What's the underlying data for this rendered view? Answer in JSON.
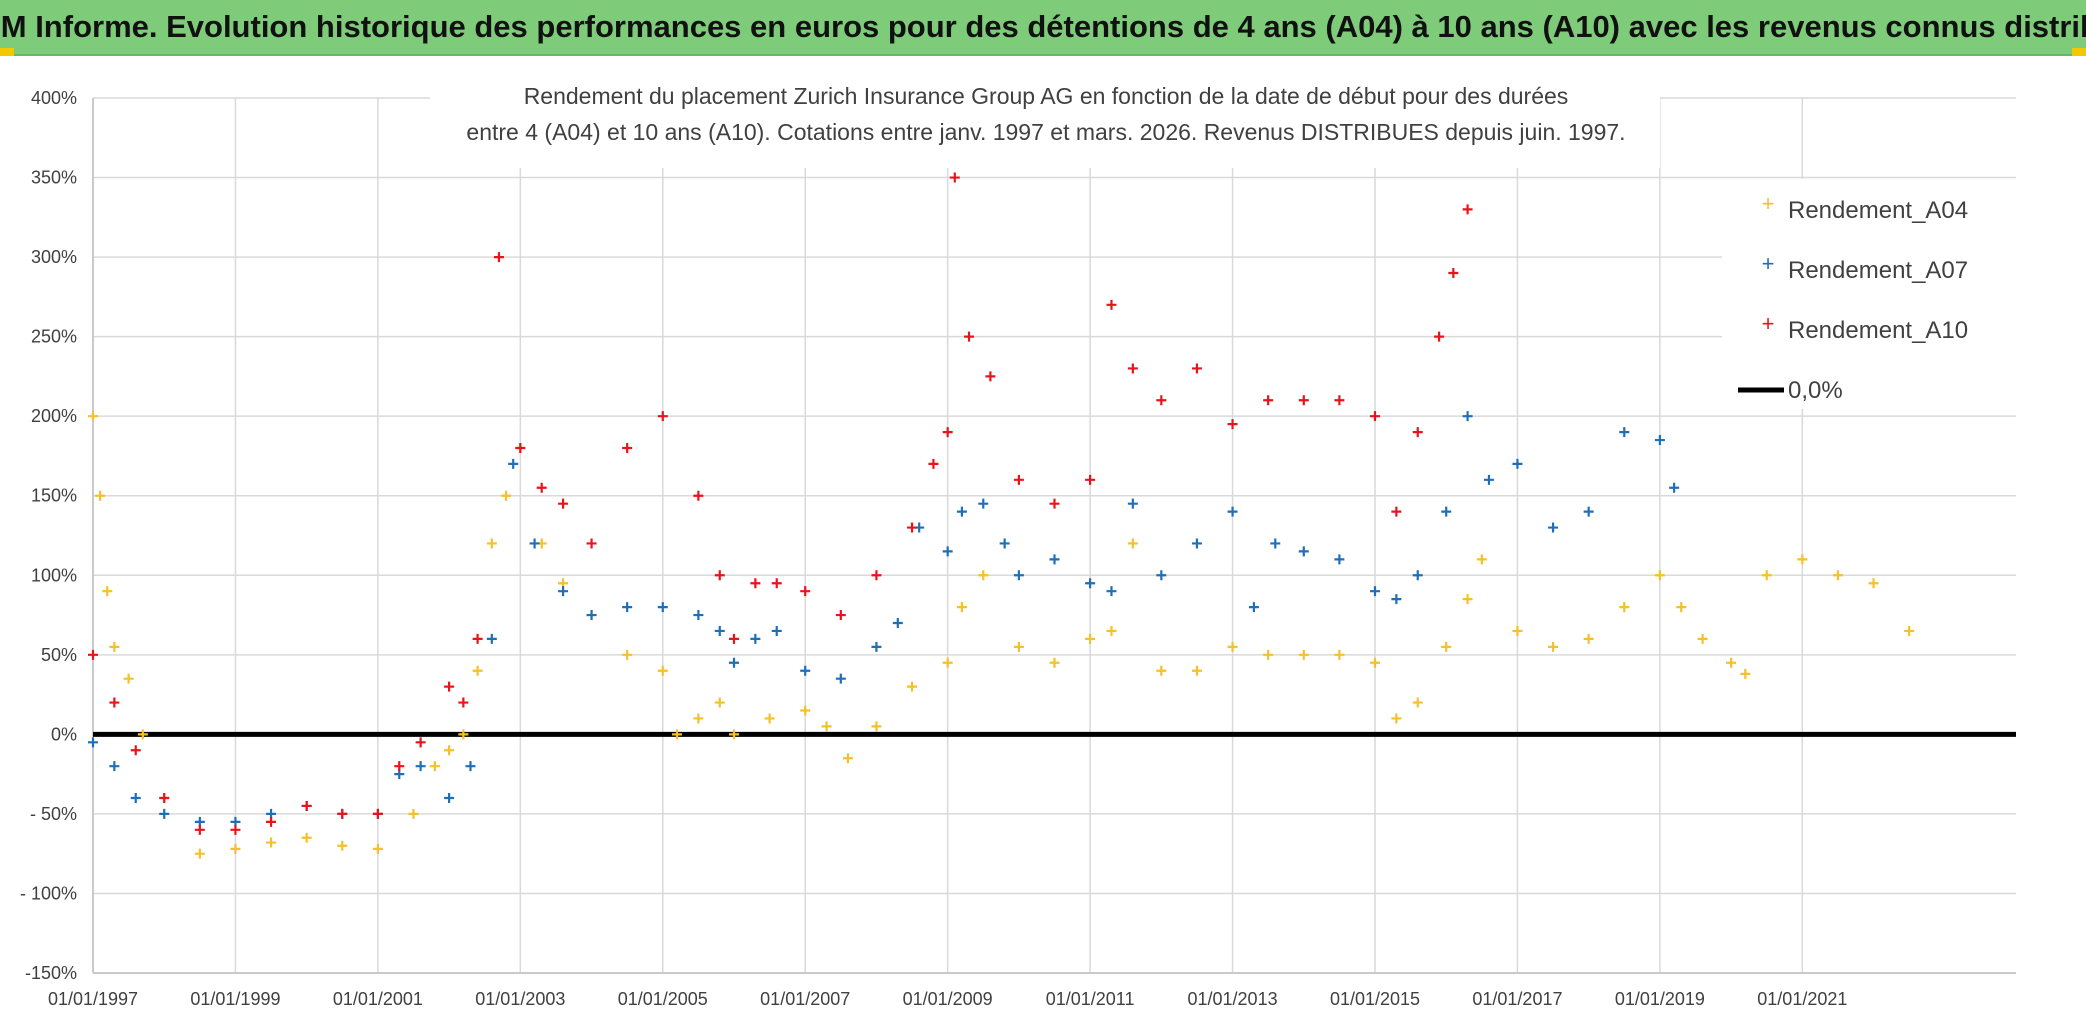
{
  "header": {
    "banner_title": "ADAM Informe. Evolution historique des performances en euros pour des détentions de 4 ans (A04) à 10 ans (A10) avec les revenus connus distribués"
  },
  "colors": {
    "banner": "#7ecb7a",
    "a04": "#f5c02a",
    "a07": "#1f6fb8",
    "a10": "#e8141c",
    "zero": "#000000",
    "grid": "#d9d9d9"
  },
  "chart_data": {
    "type": "scatter",
    "title_lines": [
      "Rendement du placement Zurich Insurance Group AG en fonction de la date de début pour des durées",
      "entre 4 (A04) et 10 ans (A10). Cotations entre janv. 1997 et mars. 2026. Revenus DISTRIBUES depuis juin. 1997."
    ],
    "xlim": [
      1997.0,
      2024.0
    ],
    "ylim": [
      -150,
      400
    ],
    "yticks": [
      400,
      350,
      300,
      250,
      200,
      150,
      100,
      50,
      0,
      -50,
      -100,
      -150
    ],
    "ytick_labels": [
      "400%",
      "350%",
      "300%",
      "250%",
      "200%",
      "150%",
      "100%",
      "50%",
      "0%",
      "- 50%",
      "- 100%",
      "-150%"
    ],
    "xticks": [
      1997,
      1999,
      2001,
      2003,
      2005,
      2007,
      2009,
      2011,
      2013,
      2015,
      2017,
      2019,
      2021
    ],
    "xtick_labels": [
      "01/01/1997",
      "01/01/1999",
      "01/01/2001",
      "01/01/2003",
      "01/01/2005",
      "01/01/2007",
      "01/01/2009",
      "01/01/2011",
      "01/01/2013",
      "01/01/2015",
      "01/01/2017",
      "01/01/2019",
      "01/01/2021"
    ],
    "legend": [
      "Rendement_A04",
      "Rendement_A07",
      "Rendement_A10",
      "0,0%"
    ],
    "series": [
      {
        "name": "Rendement_A04",
        "x": [
          1997.0,
          1997.1,
          1997.2,
          1997.3,
          1997.5,
          1997.7,
          1998.0,
          1998.5,
          1999.0,
          1999.5,
          2000.0,
          2000.5,
          2001.0,
          2001.5,
          2001.8,
          2002.0,
          2002.2,
          2002.4,
          2002.6,
          2002.8,
          2003.0,
          2003.3,
          2003.6,
          2004.0,
          2004.5,
          2005.0,
          2005.2,
          2005.5,
          2005.8,
          2006.0,
          2006.5,
          2007.0,
          2007.3,
          2007.6,
          2008.0,
          2008.5,
          2009.0,
          2009.2,
          2009.5,
          2010.0,
          2010.5,
          2011.0,
          2011.3,
          2011.6,
          2012.0,
          2012.5,
          2013.0,
          2013.5,
          2014.0,
          2014.5,
          2015.0,
          2015.3,
          2015.6,
          2016.0,
          2016.3,
          2016.5,
          2017.0,
          2017.5,
          2018.0,
          2018.5,
          2019.0,
          2019.3,
          2019.6,
          2020.0,
          2020.2,
          2020.5,
          2021.0,
          2021.5,
          2022.0,
          2022.5
        ],
        "values": [
          200,
          150,
          90,
          55,
          35,
          0,
          -40,
          -75,
          -72,
          -68,
          -65,
          -70,
          -72,
          -50,
          -20,
          -10,
          0,
          40,
          120,
          150,
          180,
          120,
          95,
          75,
          50,
          40,
          0,
          10,
          20,
          0,
          10,
          15,
          5,
          -15,
          5,
          30,
          45,
          80,
          100,
          55,
          45,
          60,
          65,
          120,
          40,
          40,
          55,
          50,
          50,
          50,
          45,
          10,
          20,
          55,
          85,
          110,
          65,
          55,
          60,
          80,
          100,
          80,
          60,
          45,
          38,
          100,
          110,
          100,
          95,
          65
        ]
      },
      {
        "name": "Rendement_A07",
        "x": [
          1997.0,
          1997.3,
          1997.6,
          1998.0,
          1998.5,
          1999.0,
          1999.5,
          2000.0,
          2000.5,
          2001.0,
          2001.3,
          2001.6,
          2002.0,
          2002.3,
          2002.6,
          2002.9,
          2003.2,
          2003.6,
          2004.0,
          2004.5,
          2005.0,
          2005.5,
          2005.8,
          2006.0,
          2006.3,
          2006.6,
          2007.0,
          2007.5,
          2008.0,
          2008.3,
          2008.6,
          2009.0,
          2009.2,
          2009.5,
          2009.8,
          2010.0,
          2010.5,
          2011.0,
          2011.3,
          2011.6,
          2012.0,
          2012.5,
          2013.0,
          2013.3,
          2013.6,
          2014.0,
          2014.5,
          2015.0,
          2015.3,
          2015.6,
          2016.0,
          2016.3,
          2016.6,
          2017.0,
          2017.5,
          2018.0,
          2018.5,
          2019.0,
          2019.2
        ],
        "values": [
          -5,
          -20,
          -40,
          -50,
          -55,
          -55,
          -50,
          -45,
          -50,
          -50,
          -25,
          -20,
          -40,
          -20,
          60,
          170,
          120,
          90,
          75,
          80,
          80,
          75,
          65,
          45,
          60,
          65,
          40,
          35,
          55,
          70,
          130,
          115,
          140,
          145,
          120,
          100,
          110,
          95,
          90,
          145,
          100,
          120,
          140,
          80,
          120,
          115,
          110,
          90,
          85,
          100,
          140,
          200,
          160,
          170,
          130,
          140,
          190,
          185,
          155
        ]
      },
      {
        "name": "Rendement_A10",
        "x": [
          1997.0,
          1997.3,
          1997.6,
          1998.0,
          1998.5,
          1999.0,
          1999.5,
          2000.0,
          2000.5,
          2001.0,
          2001.3,
          2001.6,
          2002.0,
          2002.2,
          2002.4,
          2002.7,
          2003.0,
          2003.3,
          2003.6,
          2004.0,
          2004.5,
          2005.0,
          2005.5,
          2005.8,
          2006.0,
          2006.3,
          2006.6,
          2007.0,
          2007.5,
          2008.0,
          2008.5,
          2008.8,
          2009.0,
          2009.1,
          2009.3,
          2009.6,
          2010.0,
          2010.5,
          2011.0,
          2011.3,
          2011.6,
          2012.0,
          2012.5,
          2013.0,
          2013.5,
          2014.0,
          2014.5,
          2015.0,
          2015.3,
          2015.6,
          2015.9,
          2016.1,
          2016.3
        ],
        "values": [
          50,
          20,
          -10,
          -40,
          -60,
          -60,
          -55,
          -45,
          -50,
          -50,
          -20,
          -5,
          30,
          20,
          60,
          300,
          180,
          155,
          145,
          120,
          180,
          200,
          150,
          100,
          60,
          95,
          95,
          90,
          75,
          100,
          130,
          170,
          190,
          350,
          250,
          225,
          160,
          145,
          160,
          270,
          230,
          210,
          230,
          195,
          210,
          210,
          210,
          200,
          140,
          190,
          250,
          290,
          330
        ]
      }
    ],
    "zero_line": {
      "label": "0,0%",
      "value": 0
    },
    "legend_position": "right"
  }
}
